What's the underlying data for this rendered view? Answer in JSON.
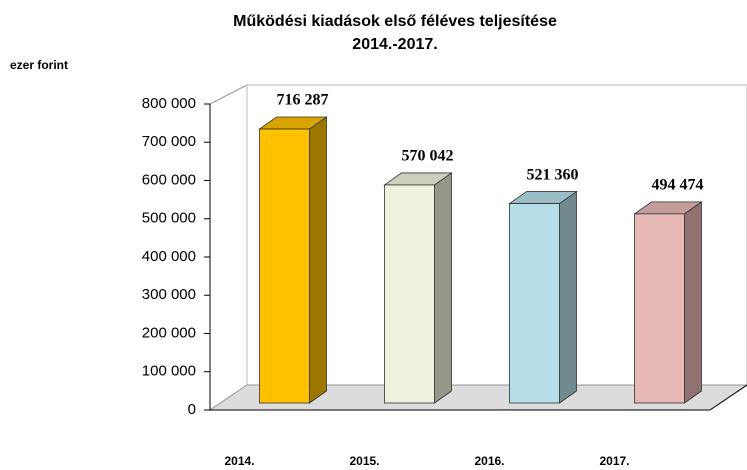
{
  "chart_data": {
    "type": "bar3d",
    "title": "Működési kiadások  első féléves teljesítése",
    "subtitle": "2014.-2017.",
    "y_label": "ezer forint",
    "categories": [
      "2014.",
      "2015.",
      "2016.",
      "2017."
    ],
    "values": [
      716287,
      570042,
      521360,
      494474
    ],
    "value_labels": [
      "716 287",
      "570 042",
      "521 360",
      "494 474"
    ],
    "colors": [
      "#FFC000",
      "#EEF3DF",
      "#B7DEE8",
      "#E6B8B7"
    ],
    "ylim": [
      0,
      800000
    ],
    "yticks": [
      0,
      {
        "value": 100000,
        "label": "100 000"
      },
      {
        "value": 200000,
        "label": "200 000"
      },
      {
        "value": 300000,
        "label": "300 000"
      },
      {
        "value": 400000,
        "label": "400 000"
      },
      {
        "value": 500000,
        "label": "500 000"
      },
      {
        "value": 600000,
        "label": "600 000"
      },
      {
        "value": 700000,
        "label": "700 000"
      },
      {
        "value": 800000,
        "label": "800 000"
      }
    ],
    "grid": false
  }
}
